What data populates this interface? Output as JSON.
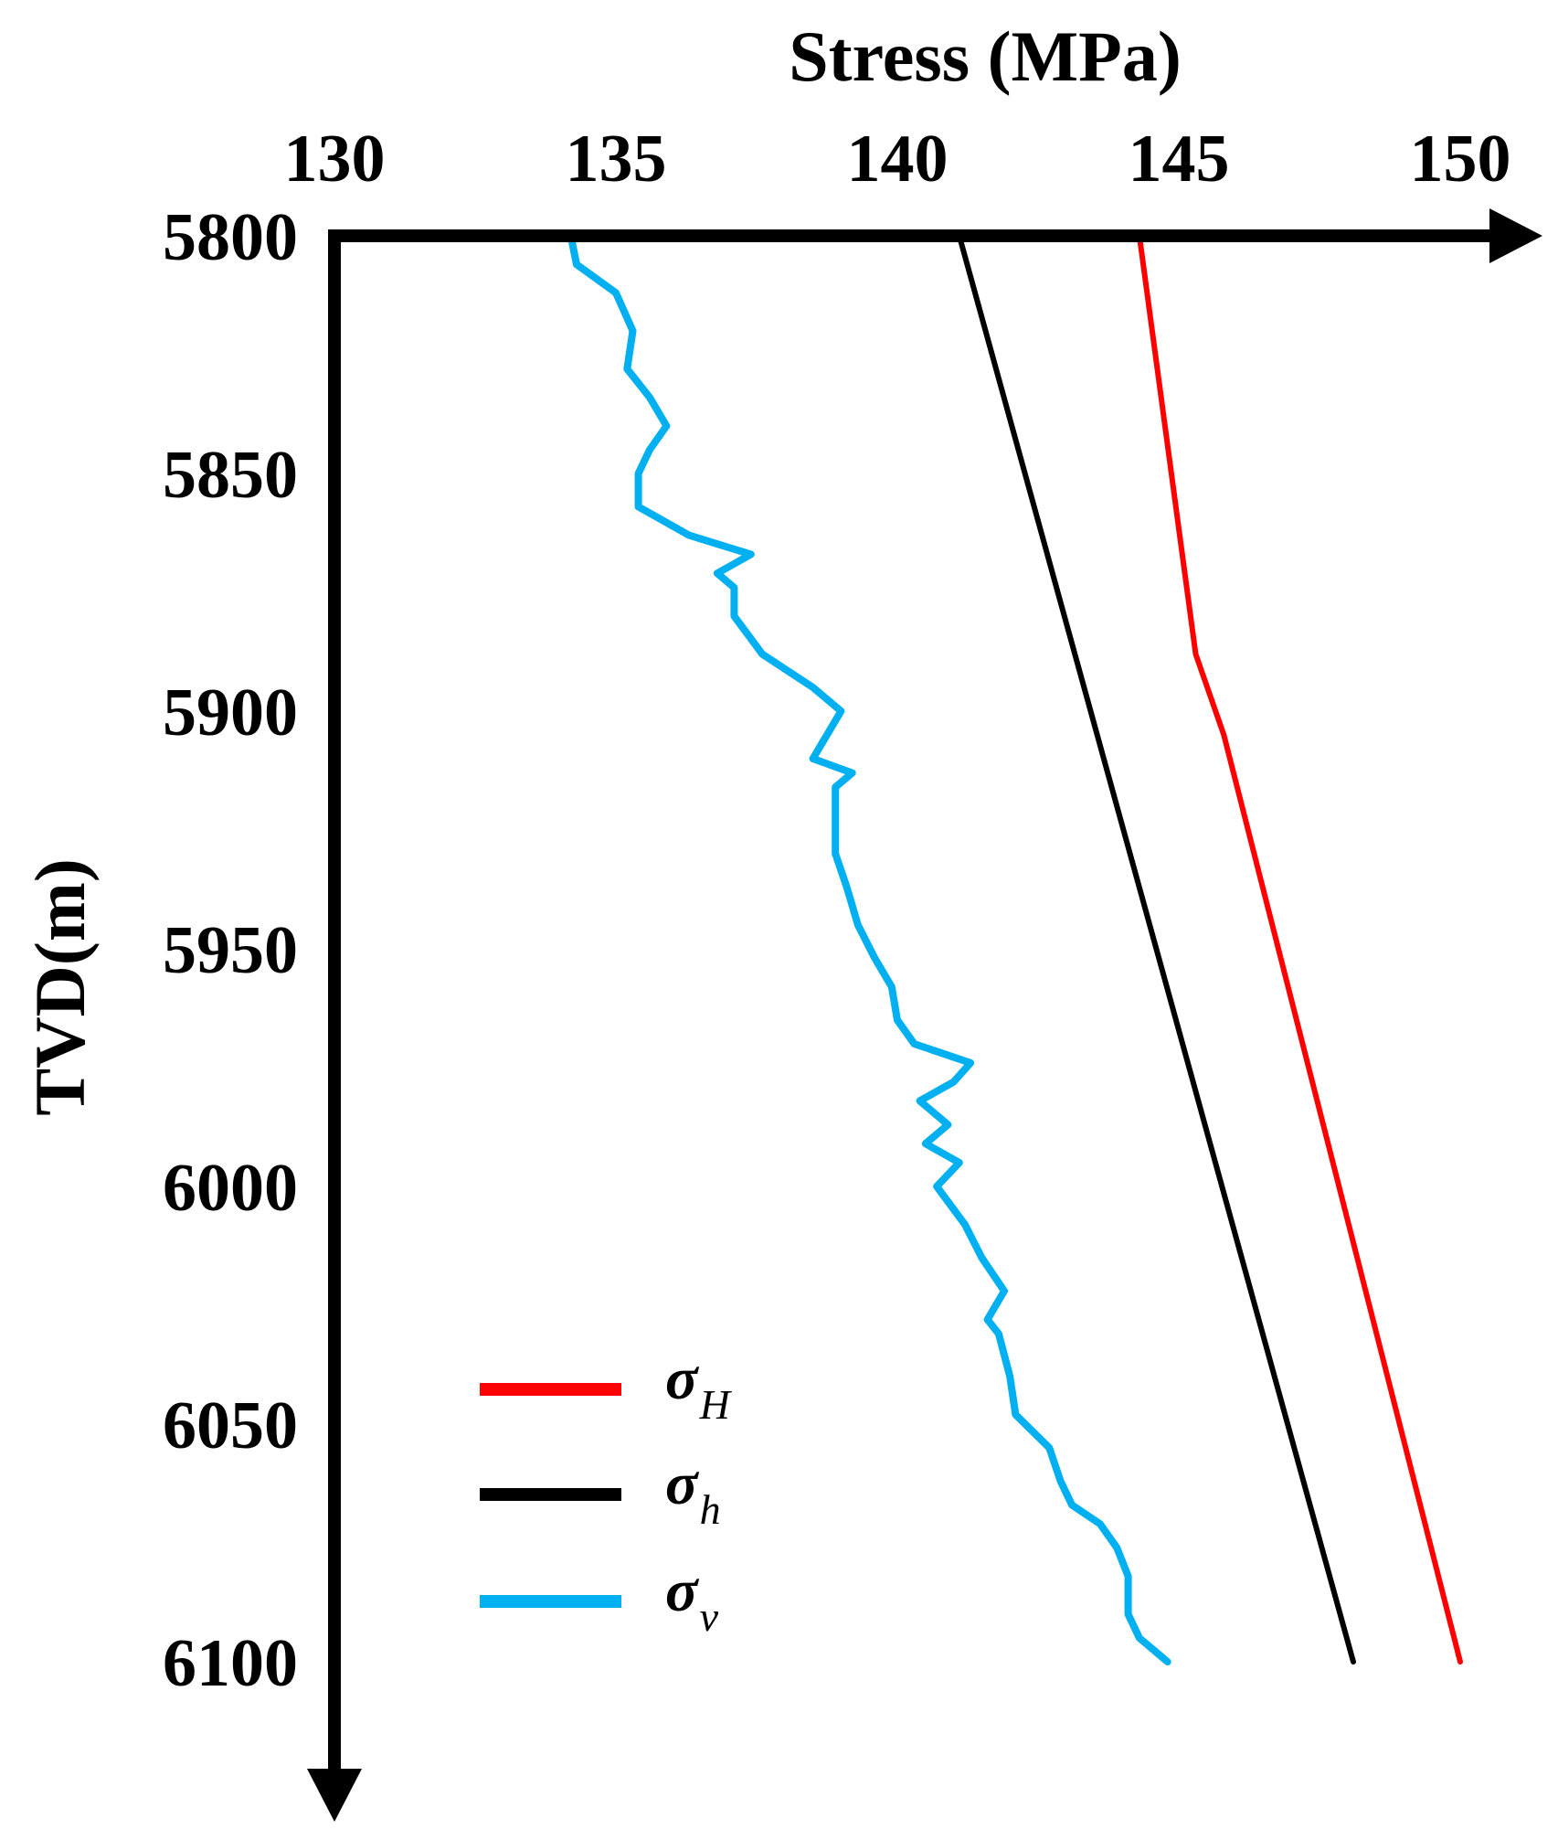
{
  "chart_data": {
    "type": "line",
    "xlabel": "Stress (MPa)",
    "ylabel": "TVD(m)",
    "xlim": [
      130,
      150
    ],
    "ylim": [
      5800,
      6100
    ],
    "x_axis_position": "top",
    "y_axis_inverted": true,
    "grid": false,
    "legend_placement": "lower-left",
    "xticks": [
      "130",
      "135",
      "140",
      "145",
      "150"
    ],
    "yticks": [
      "5800",
      "5850",
      "5900",
      "5950",
      "6000",
      "6050",
      "6100"
    ],
    "series": [
      {
        "name": "σH",
        "symbol": "σ",
        "subscript": "H",
        "color": "#ff0000",
        "points": [
          [
            144.3,
            5800
          ],
          [
            145.3,
            5888
          ],
          [
            145.8,
            5905
          ],
          [
            150.0,
            6100
          ]
        ]
      },
      {
        "name": "σh",
        "symbol": "σ",
        "subscript": "h",
        "color": "#000000",
        "points": [
          [
            141.1,
            5800
          ],
          [
            148.1,
            6100
          ]
        ]
      },
      {
        "name": "σv",
        "symbol": "σ",
        "subscript": "v",
        "color": "#00b0f0",
        "points": [
          [
            134.2,
            5800
          ],
          [
            134.3,
            5806
          ],
          [
            135.0,
            5812
          ],
          [
            135.3,
            5820
          ],
          [
            135.2,
            5828
          ],
          [
            135.6,
            5834
          ],
          [
            135.9,
            5840
          ],
          [
            135.6,
            5845
          ],
          [
            135.4,
            5850
          ],
          [
            135.4,
            5857
          ],
          [
            136.3,
            5863
          ],
          [
            137.4,
            5867
          ],
          [
            137.1,
            5869
          ],
          [
            136.8,
            5871
          ],
          [
            137.1,
            5874
          ],
          [
            137.1,
            5880
          ],
          [
            137.6,
            5888
          ],
          [
            138.5,
            5895
          ],
          [
            139.0,
            5900
          ],
          [
            138.7,
            5906
          ],
          [
            138.5,
            5910
          ],
          [
            139.2,
            5913
          ],
          [
            138.9,
            5916
          ],
          [
            138.9,
            5922
          ],
          [
            138.9,
            5930
          ],
          [
            139.1,
            5937
          ],
          [
            139.3,
            5945
          ],
          [
            139.6,
            5952
          ],
          [
            139.9,
            5958
          ],
          [
            140.0,
            5965
          ],
          [
            140.3,
            5970
          ],
          [
            141.3,
            5974
          ],
          [
            141.0,
            5978
          ],
          [
            140.4,
            5982
          ],
          [
            140.9,
            5987
          ],
          [
            140.5,
            5991
          ],
          [
            141.1,
            5995
          ],
          [
            140.7,
            6000
          ],
          [
            141.2,
            6008
          ],
          [
            141.5,
            6015
          ],
          [
            141.9,
            6022
          ],
          [
            141.6,
            6028
          ],
          [
            141.8,
            6031
          ],
          [
            142.0,
            6040
          ],
          [
            142.1,
            6048
          ],
          [
            142.7,
            6055
          ],
          [
            142.9,
            6062
          ],
          [
            143.1,
            6067
          ],
          [
            143.6,
            6071
          ],
          [
            143.9,
            6076
          ],
          [
            144.1,
            6082
          ],
          [
            144.1,
            6090
          ],
          [
            144.3,
            6095
          ],
          [
            144.8,
            6100
          ]
        ]
      }
    ]
  }
}
